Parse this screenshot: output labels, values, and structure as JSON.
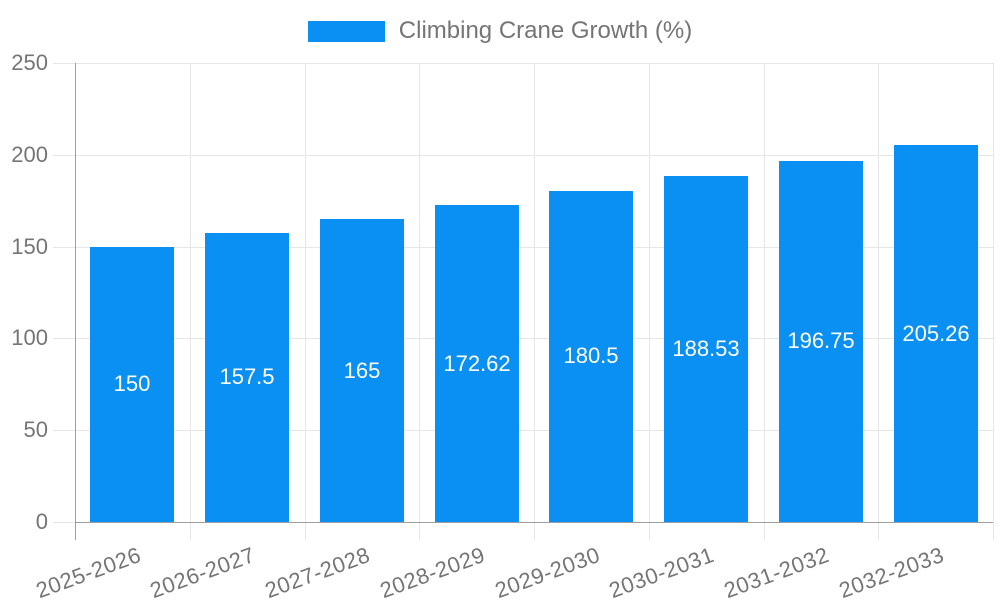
{
  "chart_data": {
    "type": "bar",
    "title": "Climbing Crane Growth (%)",
    "categories": [
      "2025-2026",
      "2026-2027",
      "2027-2028",
      "2028-2029",
      "2029-2030",
      "2030-2031",
      "2031-2032",
      "2032-2033"
    ],
    "values": [
      150,
      157.5,
      165,
      172.62,
      180.5,
      188.53,
      196.75,
      205.26
    ],
    "bar_labels": [
      "150",
      "157.5",
      "165",
      "172.62",
      "180.5",
      "188.53",
      "196.75",
      "205.26"
    ],
    "xlabel": "",
    "ylabel": "",
    "ylim": [
      0,
      250
    ],
    "yticks": [
      0,
      50,
      100,
      150,
      200,
      250
    ],
    "grid": true,
    "legend_position": "top-center",
    "x_tick_rotation_deg": -20,
    "colors": {
      "bar": "#0a90f2",
      "grid": "#e6e6e6",
      "axis": "#9e9e9e",
      "tick_text": "#757575",
      "bar_label_text": "#ffffff",
      "legend_text": "#757575",
      "background": "#ffffff"
    }
  }
}
